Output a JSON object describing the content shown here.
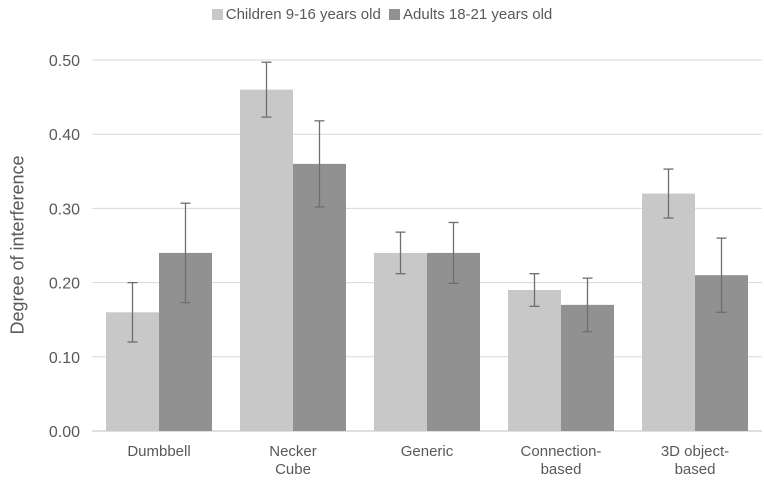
{
  "chart_data": {
    "type": "bar",
    "title": "",
    "xlabel": "",
    "ylabel": "Degree of interference",
    "ylim": [
      0,
      0.5
    ],
    "yticks": [
      "0.00",
      "0.10",
      "0.20",
      "0.30",
      "0.40",
      "0.50"
    ],
    "grid": true,
    "legend_position": "top-center",
    "categories": [
      [
        "Dumbbell"
      ],
      [
        "Necker",
        "Cube"
      ],
      [
        "Generic"
      ],
      [
        "Connection-",
        "based"
      ],
      [
        "3D object-",
        "based"
      ]
    ],
    "series": [
      {
        "name": "Children 9-16 years old",
        "color": "#c8c8c8",
        "values": [
          0.16,
          0.46,
          0.24,
          0.19,
          0.32
        ],
        "errors": [
          0.04,
          0.037,
          0.028,
          0.022,
          0.033
        ]
      },
      {
        "name": "Adults 18-21 years old",
        "color": "#919191",
        "values": [
          0.24,
          0.36,
          0.24,
          0.17,
          0.21
        ],
        "errors": [
          0.067,
          0.058,
          0.041,
          0.036,
          0.05
        ]
      }
    ]
  }
}
